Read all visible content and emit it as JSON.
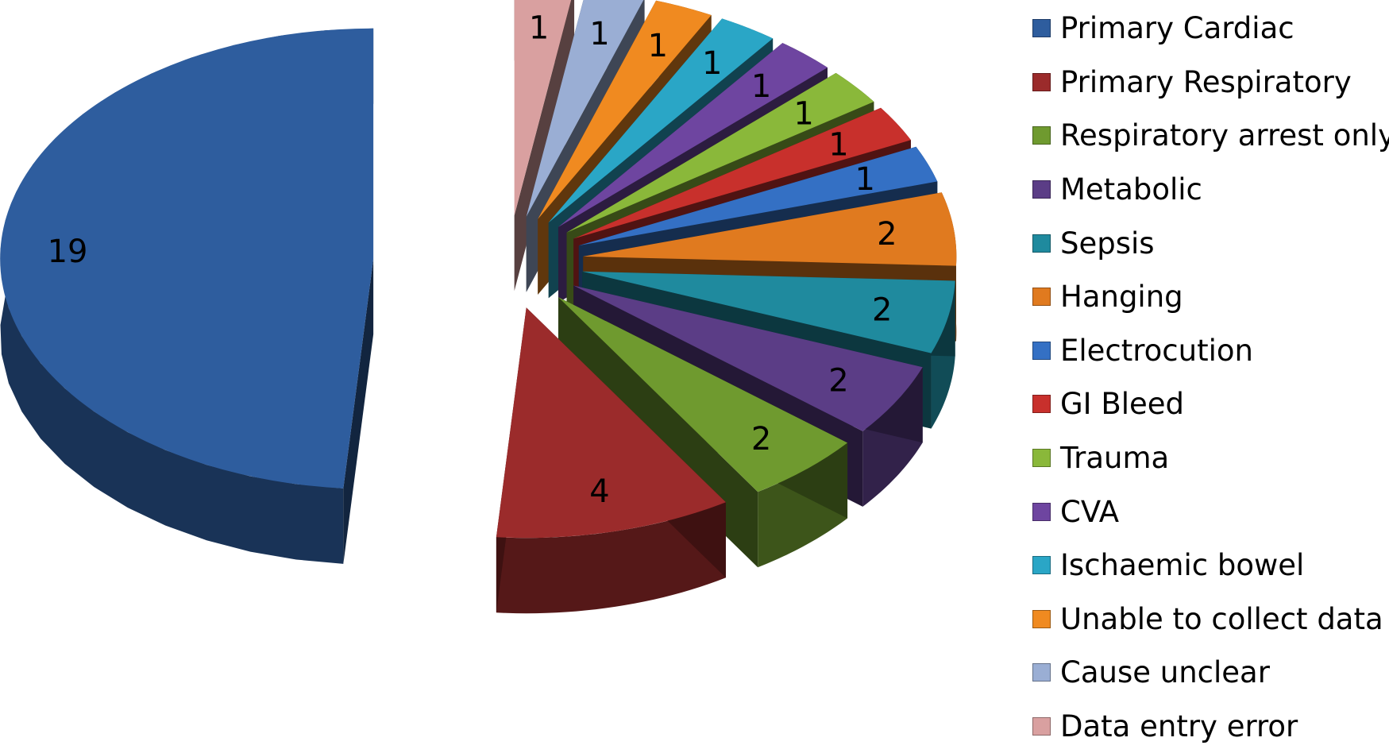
{
  "chart_data": {
    "type": "pie",
    "title": "",
    "legend_position": "right",
    "categories": [
      "Primary Cardiac",
      "Primary Respiratory",
      "Respiratory arrest only",
      "Metabolic",
      "Sepsis",
      "Hanging",
      "Electrocution",
      "GI Bleed",
      "Trauma",
      "CVA",
      "Ischaemic bowel",
      "Unable to collect data",
      "Cause unclear",
      "Data entry error"
    ],
    "values": [
      19,
      4,
      2,
      2,
      2,
      2,
      1,
      1,
      1,
      1,
      1,
      1,
      1,
      1
    ],
    "colors": [
      "#2e5d9e",
      "#9b2b2b",
      "#6f9a2f",
      "#5b3d86",
      "#1f8a9e",
      "#e07a1f",
      "#3470c4",
      "#c8302c",
      "#8ab83a",
      "#6e45a0",
      "#2aa6c6",
      "#f08a20",
      "#9aaed4",
      "#d9a0a0"
    ]
  }
}
